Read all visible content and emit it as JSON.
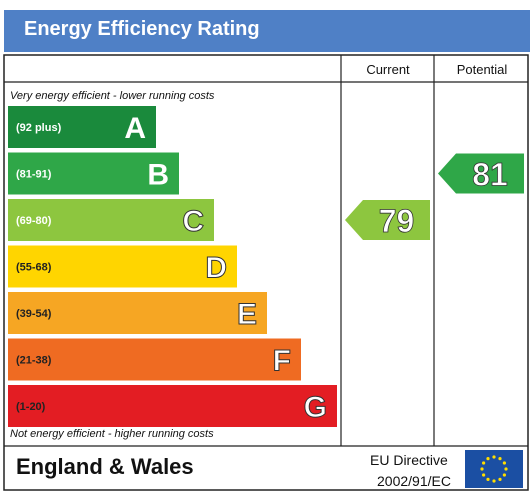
{
  "title": "Energy Efficiency Rating",
  "columns": {
    "current": "Current",
    "potential": "Potential"
  },
  "top_note": "Very energy efficient - lower running costs",
  "bottom_note": "Not energy efficient - higher running costs",
  "footer": {
    "region": "England & Wales",
    "directive_line1": "EU Directive",
    "directive_line2": "2002/91/EC"
  },
  "colors": {
    "title_bar": "#4f80c6",
    "eu_flag": "#1b4fa3",
    "eu_stars": "#ffdd00"
  },
  "chart_data": {
    "type": "bar",
    "title": "Energy Efficiency Rating",
    "categories": [
      "A",
      "B",
      "C",
      "D",
      "E",
      "F",
      "G"
    ],
    "ranges": [
      "(92 plus)",
      "(81-91)",
      "(69-80)",
      "(55-68)",
      "(39-54)",
      "(21-38)",
      "(1-20)"
    ],
    "bar_colors": [
      "#1a8a3c",
      "#2fa748",
      "#8dc63f",
      "#ffd500",
      "#f6a623",
      "#ef6b22",
      "#e31d23"
    ],
    "current": {
      "value": 79,
      "band": "C",
      "color": "#8dc63f"
    },
    "potential": {
      "value": 81,
      "band": "B",
      "color": "#2fa748"
    }
  }
}
